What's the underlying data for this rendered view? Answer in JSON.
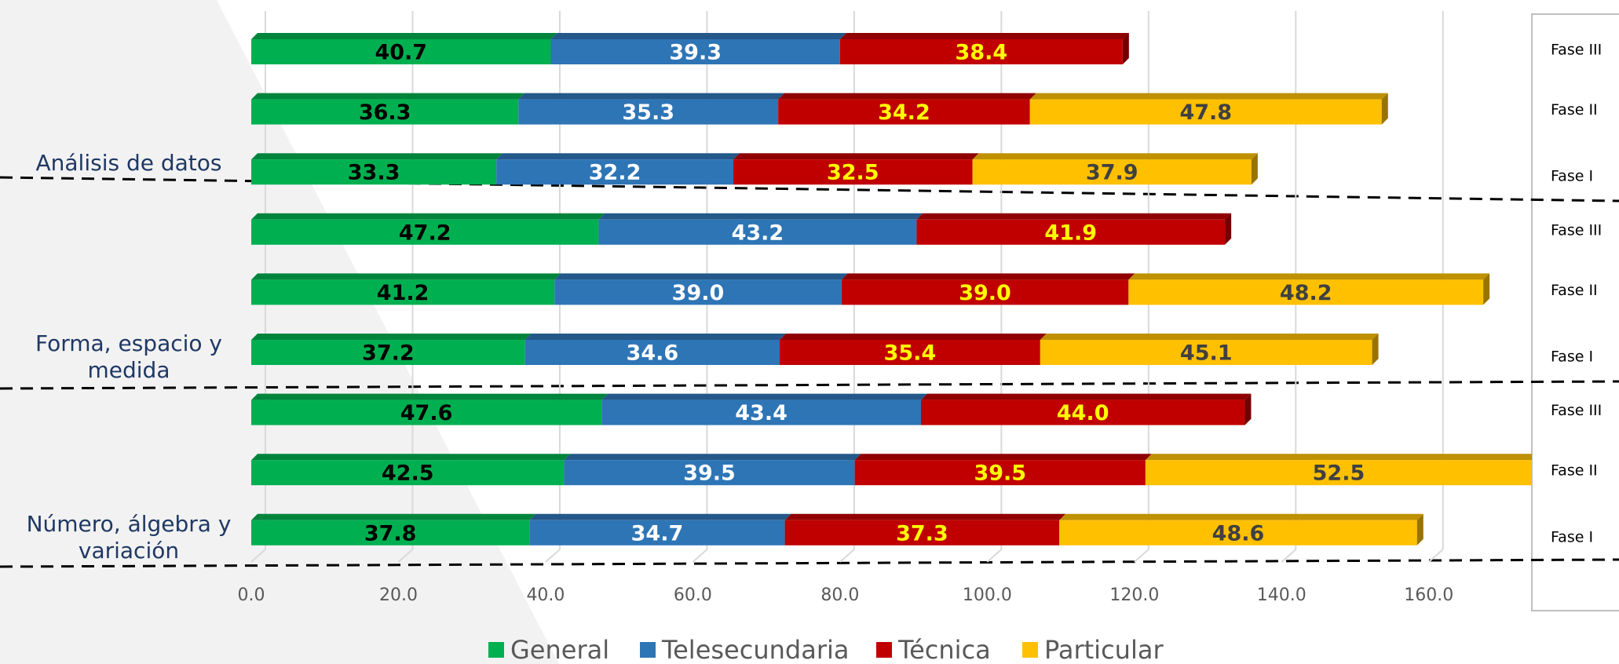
{
  "chart_data": {
    "type": "bar",
    "orientation": "horizontal",
    "stacked": true,
    "group_labels": [
      "Análisis de datos",
      "Forma, espacio y medida",
      "Número, álgebra y variación"
    ],
    "categories": [
      "Fase III",
      "Fase II",
      "Fase I",
      "Fase III",
      "Fase II",
      "Fase I",
      "Fase III",
      "Fase II",
      "Fase I"
    ],
    "series": [
      {
        "name": "General",
        "color": "#00b050",
        "label_color": "#000000",
        "values": [
          40.7,
          36.3,
          33.3,
          47.2,
          41.2,
          37.2,
          47.6,
          42.5,
          37.8
        ],
        "value_labels": [
          "40.7",
          "36.3",
          "33.3",
          "47.2",
          "41.2",
          "37.2",
          "47.6",
          "42.5",
          "37.8"
        ]
      },
      {
        "name": "Telesecundaria",
        "color": "#2e75b6",
        "label_color": "#ffffff",
        "values": [
          39.3,
          35.3,
          32.2,
          43.2,
          39,
          34.6,
          43.4,
          39.5,
          34.7
        ],
        "value_labels": [
          "39.3",
          "35.3",
          "32.2",
          "43.2",
          "39.0",
          "34.6",
          "43.4",
          "39.5",
          "34.7"
        ]
      },
      {
        "name": "Técnica",
        "color": "#c00000",
        "label_color": "#ffff00",
        "values": [
          38.4,
          34.2,
          32.5,
          41.9,
          39,
          35.4,
          44,
          39.5,
          37.3
        ],
        "value_labels": [
          "38.4",
          "34.2",
          "32.5",
          "41.9",
          "39.0",
          "35.4",
          "44.0",
          "39.5",
          "37.3"
        ]
      },
      {
        "name": "Particular",
        "color": "#ffc000",
        "label_color": "#404040",
        "values": [
          null,
          47.8,
          37.9,
          null,
          48.2,
          45.1,
          null,
          52.5,
          48.6
        ],
        "value_labels": [
          null,
          "47.8",
          "37.9",
          null,
          "48.2",
          "45.1",
          null,
          "52.5",
          "48.6"
        ]
      }
    ],
    "xlim": [
      0,
      174
    ],
    "xticks": [
      {
        "value": 0,
        "label": "0.0"
      },
      {
        "value": 20,
        "label": "20.0"
      },
      {
        "value": 40,
        "label": "40.0"
      },
      {
        "value": 60,
        "label": "60.0"
      },
      {
        "value": 80,
        "label": "80.0"
      },
      {
        "value": 100,
        "label": "100.0"
      },
      {
        "value": 120,
        "label": "120.0"
      },
      {
        "value": 140,
        "label": "140.0"
      },
      {
        "value": 160,
        "label": "160.0"
      }
    ],
    "grid": true,
    "legend": "bottom"
  }
}
